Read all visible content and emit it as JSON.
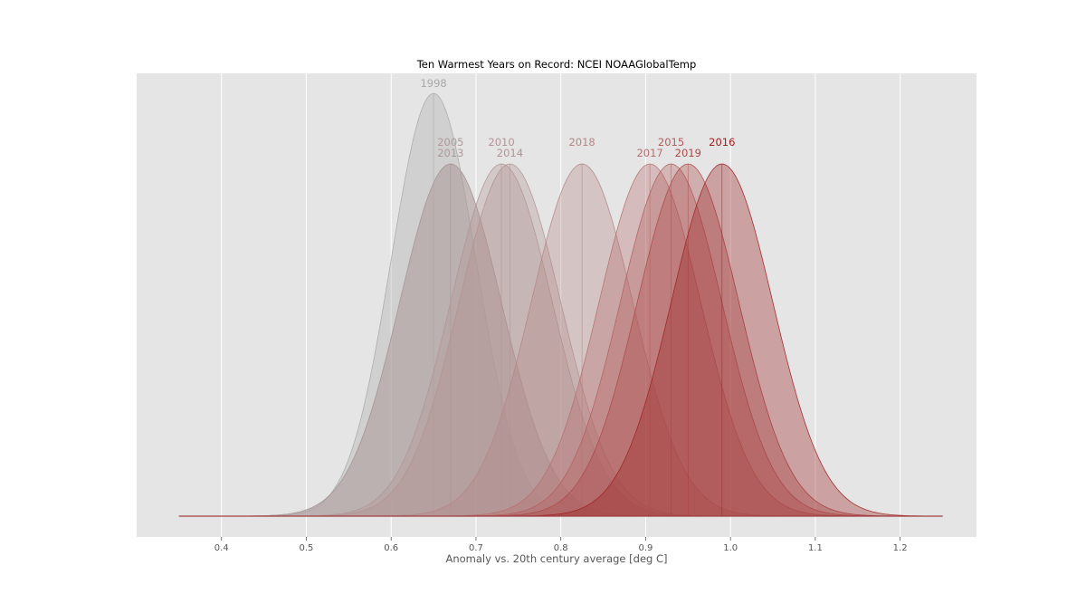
{
  "chart_data": {
    "type": "area",
    "title": "Ten Warmest Years on Record: NCEI NOAAGlobalTemp",
    "xlabel": "Anomaly vs. 20th century average [deg C]",
    "ylabel": "",
    "xlim": [
      0.3,
      1.29
    ],
    "x_ticks": [
      "0.4",
      "0.5",
      "0.6",
      "0.7",
      "0.8",
      "0.9",
      "1.0",
      "1.1",
      "1.2"
    ],
    "x_tick_values": [
      0.4,
      0.5,
      0.6,
      0.7,
      0.8,
      0.9,
      1.0,
      1.1,
      1.2
    ],
    "curve_range": [
      0.35,
      1.25
    ],
    "background_color": "#e5e5e5",
    "grid": true,
    "series": [
      {
        "name": "1998",
        "mean": 0.65,
        "sd": 0.05,
        "peak": 1.0,
        "color": "#a8a8a8",
        "label_row": 0
      },
      {
        "name": "2005",
        "mean": 0.67,
        "sd": 0.06,
        "peak": 0.833,
        "color": "#ac9c9c",
        "label_row": 1
      },
      {
        "name": "2013",
        "mean": 0.67,
        "sd": 0.06,
        "peak": 0.833,
        "color": "#ab9a9a",
        "label_row": 2
      },
      {
        "name": "2010",
        "mean": 0.73,
        "sd": 0.06,
        "peak": 0.833,
        "color": "#b19595",
        "label_row": 1
      },
      {
        "name": "2014",
        "mean": 0.74,
        "sd": 0.06,
        "peak": 0.833,
        "color": "#b29292",
        "label_row": 2
      },
      {
        "name": "2018",
        "mean": 0.825,
        "sd": 0.06,
        "peak": 0.833,
        "color": "#b58686",
        "label_row": 1
      },
      {
        "name": "2017",
        "mean": 0.905,
        "sd": 0.06,
        "peak": 0.833,
        "color": "#b76e6e",
        "label_row": 2
      },
      {
        "name": "2015",
        "mean": 0.93,
        "sd": 0.06,
        "peak": 0.833,
        "color": "#b45e5e",
        "label_row": 1
      },
      {
        "name": "2019",
        "mean": 0.95,
        "sd": 0.06,
        "peak": 0.833,
        "color": "#ad4848",
        "label_row": 2
      },
      {
        "name": "2016",
        "mean": 0.99,
        "sd": 0.06,
        "peak": 0.833,
        "color": "#9c2222",
        "label_row": 1
      }
    ]
  }
}
